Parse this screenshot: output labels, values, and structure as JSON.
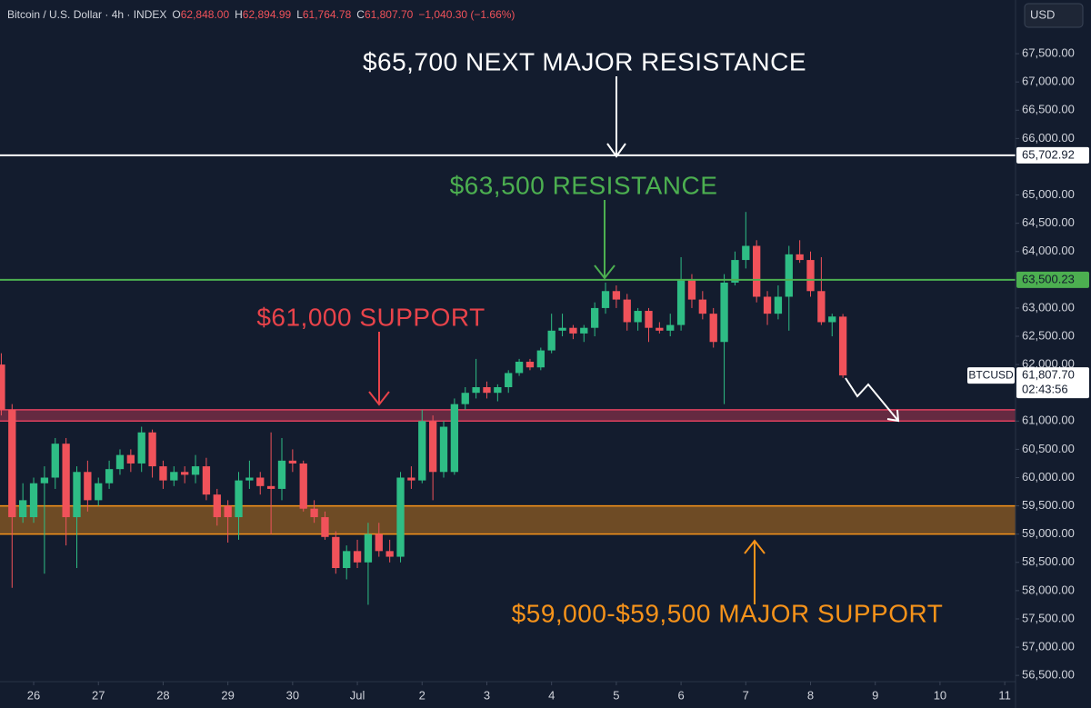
{
  "chart_data": {
    "type": "candlestick",
    "title": "Bitcoin / U.S. Dollar · 4h · INDEX",
    "header": {
      "o": "O",
      "open": "62,848.00",
      "h": "H",
      "high": "62,894.99",
      "l": "L",
      "low": "61,764.78",
      "c": "C",
      "close": "61,807.70",
      "change": "−1,040.30 (−1.66%)"
    },
    "currency": "USD",
    "up_color": "#2ebd85",
    "down_color": "#f0525a",
    "x": [
      -3,
      -2,
      -1,
      0,
      1,
      2,
      3,
      4,
      5,
      6,
      7,
      8,
      9,
      10,
      11,
      12,
      13,
      14,
      15,
      16,
      17,
      18,
      19,
      20,
      21,
      22,
      23,
      24,
      25,
      26,
      27,
      28,
      29,
      30,
      31,
      32,
      33,
      34,
      35,
      36,
      37,
      38,
      39,
      40,
      41,
      42,
      43,
      44,
      45,
      46,
      47,
      48,
      49,
      50,
      51,
      52,
      53,
      54,
      55,
      56,
      57,
      58,
      59,
      60,
      61,
      62,
      63,
      64,
      65,
      66,
      67,
      68,
      69,
      70,
      71,
      72,
      73,
      74,
      75
    ],
    "open": [
      62000,
      61200,
      59300,
      59300,
      59900,
      60000,
      60600,
      59300,
      60100,
      59600,
      59900,
      60150,
      60400,
      60250,
      60800,
      60200,
      59950,
      60100,
      60050,
      60200,
      59700,
      59500,
      59300,
      59950,
      60000,
      59850,
      59800,
      60300,
      60250,
      59450,
      59300,
      58950,
      58400,
      58700,
      58500,
      59000,
      58700,
      58600,
      60000,
      59950,
      61000,
      60100,
      60100,
      61300,
      61500,
      61600,
      61500,
      61600,
      61850,
      62050,
      61950,
      62250,
      62600,
      62650,
      62550,
      62650,
      63000,
      63300,
      63150,
      62750,
      62950,
      62650,
      62600,
      62700,
      63500,
      63150,
      62900,
      62400,
      63450,
      63850,
      64100,
      63200,
      62900,
      63200,
      63950,
      63850,
      63300,
      62750,
      62848
    ],
    "high": [
      62200,
      61300,
      59900,
      60000,
      60200,
      60700,
      60700,
      60200,
      60300,
      60000,
      60300,
      60500,
      60500,
      60900,
      60850,
      60300,
      60200,
      60200,
      60400,
      60350,
      59800,
      59600,
      60100,
      60300,
      60100,
      60800,
      60700,
      60500,
      60300,
      59600,
      59400,
      59050,
      58800,
      58900,
      59200,
      59200,
      58900,
      60100,
      60200,
      61200,
      61100,
      61000,
      61400,
      61600,
      62100,
      61700,
      61650,
      61900,
      62100,
      62100,
      62300,
      62900,
      62900,
      62700,
      62700,
      63100,
      63450,
      63400,
      63250,
      63000,
      63000,
      62750,
      62900,
      63900,
      63600,
      63300,
      63000,
      63600,
      64000,
      64700,
      64200,
      63300,
      63400,
      64100,
      64200,
      64000,
      63900,
      62900,
      62894.99
    ],
    "low": [
      61100,
      58050,
      59200,
      59200,
      58300,
      59800,
      58800,
      58400,
      59400,
      59500,
      59800,
      60050,
      60100,
      60100,
      60000,
      59800,
      59850,
      59900,
      59900,
      59600,
      59150,
      58850,
      58900,
      59800,
      59700,
      59000,
      59600,
      60100,
      59400,
      59200,
      58900,
      58300,
      58200,
      58400,
      57750,
      58600,
      58500,
      58500,
      59800,
      59900,
      59600,
      60000,
      60050,
      61200,
      61400,
      61400,
      61350,
      61500,
      61800,
      61900,
      61900,
      62200,
      62500,
      62450,
      62400,
      62500,
      62900,
      63000,
      62600,
      62600,
      62400,
      62550,
      62500,
      62600,
      63000,
      62800,
      62300,
      61300,
      63400,
      63700,
      63100,
      62700,
      62800,
      62600,
      63800,
      63200,
      62700,
      62500,
      61764.78
    ],
    "close": [
      61200,
      59300,
      59600,
      59900,
      60000,
      60600,
      59300,
      60100,
      59600,
      59900,
      60150,
      60400,
      60250,
      60800,
      60200,
      59950,
      60100,
      60050,
      60200,
      59700,
      59300,
      59300,
      59950,
      60000,
      59850,
      59800,
      60300,
      60250,
      59450,
      59300,
      58950,
      58400,
      58700,
      58500,
      59000,
      58700,
      58600,
      60000,
      59950,
      61000,
      60100,
      60900,
      61300,
      61500,
      61600,
      61500,
      61600,
      61850,
      62050,
      61950,
      62250,
      62600,
      62650,
      62550,
      62650,
      63000,
      63300,
      63150,
      62750,
      62950,
      62650,
      62600,
      62700,
      63500,
      63150,
      62900,
      62400,
      63450,
      63850,
      64100,
      63200,
      62900,
      63200,
      63950,
      63850,
      63300,
      62750,
      62850,
      61807.7
    ],
    "xlim": [
      -3.12,
      91
    ],
    "xticks": [
      {
        "value": 0,
        "label": "26"
      },
      {
        "value": 6,
        "label": "27"
      },
      {
        "value": 12,
        "label": "28"
      },
      {
        "value": 18,
        "label": "29"
      },
      {
        "value": 24,
        "label": "30"
      },
      {
        "value": 30,
        "label": "Jul"
      },
      {
        "value": 36,
        "label": "2"
      },
      {
        "value": 42,
        "label": "3"
      },
      {
        "value": 48,
        "label": "4"
      },
      {
        "value": 54,
        "label": "5"
      },
      {
        "value": 60,
        "label": "6"
      },
      {
        "value": 66,
        "label": "7"
      },
      {
        "value": 72,
        "label": "8"
      },
      {
        "value": 78,
        "label": "9"
      },
      {
        "value": 84,
        "label": "10"
      },
      {
        "value": 90,
        "label": "11"
      }
    ],
    "ylim": [
      56390,
      68450
    ],
    "yticks": [
      {
        "value": 56500,
        "label": "56,500.00"
      },
      {
        "value": 57000,
        "label": "57,000.00"
      },
      {
        "value": 57500,
        "label": "57,500.00"
      },
      {
        "value": 58000,
        "label": "58,000.00"
      },
      {
        "value": 58500,
        "label": "58,500.00"
      },
      {
        "value": 59000,
        "label": "59,000.00"
      },
      {
        "value": 59500,
        "label": "59,500.00"
      },
      {
        "value": 60000,
        "label": "60,000.00"
      },
      {
        "value": 60500,
        "label": "60,500.00"
      },
      {
        "value": 61000,
        "label": "61,000.00"
      },
      {
        "value": 62000,
        "label": "62,000.00"
      },
      {
        "value": 62500,
        "label": "62,500.00"
      },
      {
        "value": 63000,
        "label": "63,000.00"
      },
      {
        "value": 64000,
        "label": "64,000.00"
      },
      {
        "value": 64500,
        "label": "64,500.00"
      },
      {
        "value": 65000,
        "label": "65,000.00"
      },
      {
        "value": 66000,
        "label": "66,000.00"
      },
      {
        "value": 66500,
        "label": "66,500.00"
      },
      {
        "value": 67000,
        "label": "67,000.00"
      },
      {
        "value": 67500,
        "label": "67,500.00"
      }
    ],
    "levels": [
      {
        "value": 65702.92,
        "label": "65,702.92",
        "color": "#ffffff"
      },
      {
        "value": 63500.23,
        "label": "63,500.23",
        "color": "#4caf50"
      }
    ],
    "zones": [
      {
        "from": 61000,
        "to": 61200,
        "color": "#e0405e"
      },
      {
        "from": 59000,
        "to": 59500,
        "color": "#f7931a"
      }
    ],
    "last_price": {
      "symbol": "BTCUSD",
      "value": 61807.7,
      "label": "61,807.70",
      "countdown": "02:43:56"
    },
    "annotations": [
      {
        "text": "$65,700 NEXT MAJOR RESISTANCE",
        "color": "#ffffff"
      },
      {
        "text": "$63,500 RESISTANCE",
        "color": "#4caf50"
      },
      {
        "text": "$61,000 SUPPORT",
        "color": "#e8434a"
      },
      {
        "text": "$59,000-$59,500 MAJOR SUPPORT",
        "color": "#f7931a"
      }
    ]
  }
}
